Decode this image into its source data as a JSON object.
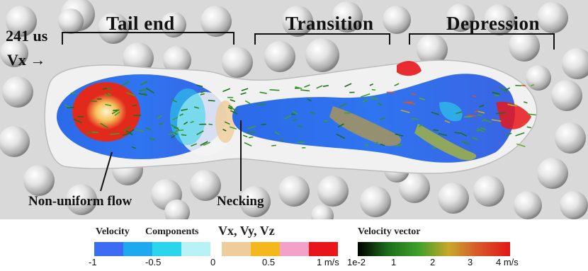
{
  "time_label": "241 us",
  "vx_label": "Vx →",
  "regions": {
    "tail_end": "Tail end",
    "transition": "Transition",
    "depression": "Depression"
  },
  "annotations": {
    "non_uniform_flow": "Non-uniform flow",
    "necking": "Necking"
  },
  "legend": {
    "components_title_1": "Velocity",
    "components_title_2": "Components",
    "components_vars": "Vx, Vy, Vz",
    "components_ticks": [
      "-1",
      "-0.5",
      "0",
      "0.5",
      "1 m/s"
    ],
    "components_colors": [
      "#3b6cf2",
      "#1ea8f0",
      "#2cd6ea",
      "#b8f1f6",
      "#f0cc9a",
      "#f4b81c",
      "#f2a2c8",
      "#e8161c"
    ],
    "vector_title": "Velocity vector",
    "vector_ticks": [
      "1e-2",
      "1",
      "2",
      "3",
      "4 m/s"
    ],
    "vector_gradient": [
      "#000000",
      "#1c6e1c",
      "#3fa02a",
      "#c9a62a",
      "#d8542a",
      "#e01818"
    ]
  }
}
